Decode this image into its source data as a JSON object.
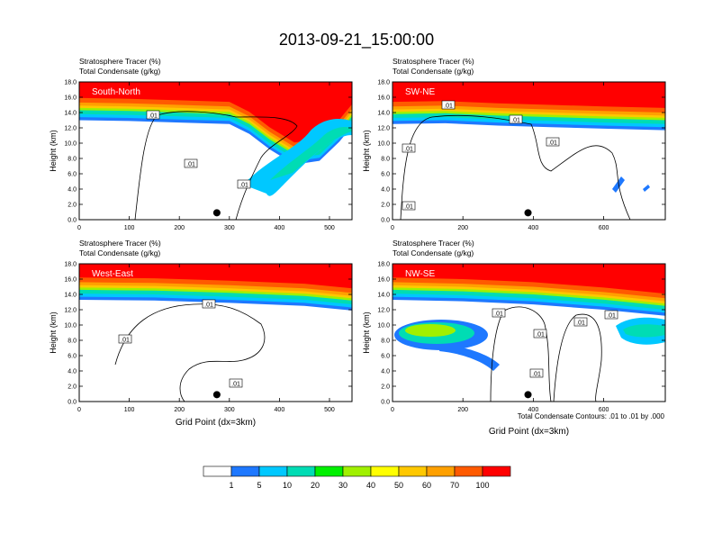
{
  "title": "2013-09-21_15:00:00",
  "field_labels": {
    "tracer": "Stratosphere Tracer   (%)",
    "condensate": "Total Condensate   (g/kg)"
  },
  "footnote": "Total Condensate Contours: .01 to .01 by .000",
  "colorbar": {
    "levels": [
      "1",
      "5",
      "10",
      "20",
      "30",
      "40",
      "50",
      "60",
      "70",
      "100"
    ],
    "colors": [
      "#ffffff",
      "#1e78ff",
      "#00c8ff",
      "#00dcb4",
      "#00f000",
      "#a0f000",
      "#ffff00",
      "#ffc800",
      "#ffa000",
      "#ff5a00",
      "#ff0000"
    ]
  },
  "chart_data": [
    {
      "type": "heatmap",
      "panel": "South-North",
      "xlabel": "",
      "ylabel": "Height (km)",
      "xlim": [
        0,
        545
      ],
      "ylim": [
        0,
        18
      ],
      "xticks": [
        "0",
        "100",
        "200",
        "300",
        "400",
        "500"
      ],
      "xtick_values": [
        0,
        100,
        200,
        300,
        400,
        500
      ],
      "yticks": [
        "0.0",
        "2.0",
        "4.0",
        "6.0",
        "8.0",
        "10.0",
        "12.0",
        "14.0",
        "16.0",
        "18.0"
      ],
      "contour_labels": [
        ".01",
        ".01",
        ".01"
      ],
      "marker": {
        "x": 275,
        "y": 0.9
      },
      "tropopause_km": [
        [
          0,
          14.3
        ],
        [
          100,
          14.2
        ],
        [
          200,
          14.0
        ],
        [
          300,
          13.8
        ],
        [
          340,
          12.5
        ],
        [
          380,
          10.5
        ],
        [
          430,
          8.5
        ],
        [
          480,
          9.0
        ],
        [
          520,
          11.5
        ],
        [
          545,
          13.5
        ]
      ]
    },
    {
      "type": "heatmap",
      "panel": "SW-NE",
      "xlabel": "",
      "ylabel": "Height (km)",
      "xlim": [
        0,
        775
      ],
      "ylim": [
        0,
        18
      ],
      "xticks": [
        "0",
        "200",
        "400",
        "600"
      ],
      "xtick_values": [
        0,
        200,
        400,
        600
      ],
      "yticks": [
        "0.0",
        "2.0",
        "4.0",
        "6.0",
        "8.0",
        "10.0",
        "12.0",
        "14.0",
        "16.0",
        "18.0"
      ],
      "contour_labels": [
        ".01",
        ".01",
        ".01",
        ".01",
        ".01"
      ],
      "marker": {
        "x": 385,
        "y": 0.9
      },
      "tropopause_km": [
        [
          0,
          13.8
        ],
        [
          150,
          13.9
        ],
        [
          300,
          13.6
        ],
        [
          450,
          13.4
        ],
        [
          600,
          13.2
        ],
        [
          775,
          13.0
        ]
      ]
    },
    {
      "type": "heatmap",
      "panel": "West-East",
      "xlabel": "Grid Point (dx=3km)",
      "ylabel": "Height (km)",
      "xlim": [
        0,
        545
      ],
      "ylim": [
        0,
        18
      ],
      "xticks": [
        "0",
        "100",
        "200",
        "300",
        "400",
        "500"
      ],
      "xtick_values": [
        0,
        100,
        200,
        300,
        400,
        500
      ],
      "yticks": [
        "0.0",
        "2.0",
        "4.0",
        "6.0",
        "8.0",
        "10.0",
        "12.0",
        "14.0",
        "16.0",
        "18.0"
      ],
      "contour_labels": [
        ".01",
        ".01",
        ".01"
      ],
      "marker": {
        "x": 275,
        "y": 0.9
      },
      "tropopause_km": [
        [
          0,
          14.6
        ],
        [
          150,
          14.5
        ],
        [
          300,
          14.2
        ],
        [
          450,
          13.8
        ],
        [
          545,
          13.2
        ]
      ]
    },
    {
      "type": "heatmap",
      "panel": "NW-SE",
      "xlabel": "Grid Point (dx=3km)",
      "ylabel": "Height (km)",
      "xlim": [
        0,
        775
      ],
      "ylim": [
        0,
        18
      ],
      "xticks": [
        "0",
        "200",
        "400",
        "600"
      ],
      "xtick_values": [
        0,
        200,
        400,
        600
      ],
      "yticks": [
        "0.0",
        "2.0",
        "4.0",
        "6.0",
        "8.0",
        "10.0",
        "12.0",
        "14.0",
        "16.0",
        "18.0"
      ],
      "contour_labels": [
        ".01",
        ".01",
        ".01",
        ".01",
        ".01"
      ],
      "marker": {
        "x": 385,
        "y": 0.9
      },
      "tropopause_km": [
        [
          0,
          14.6
        ],
        [
          200,
          14.4
        ],
        [
          400,
          14.0
        ],
        [
          600,
          13.3
        ],
        [
          775,
          12.5
        ]
      ]
    }
  ]
}
